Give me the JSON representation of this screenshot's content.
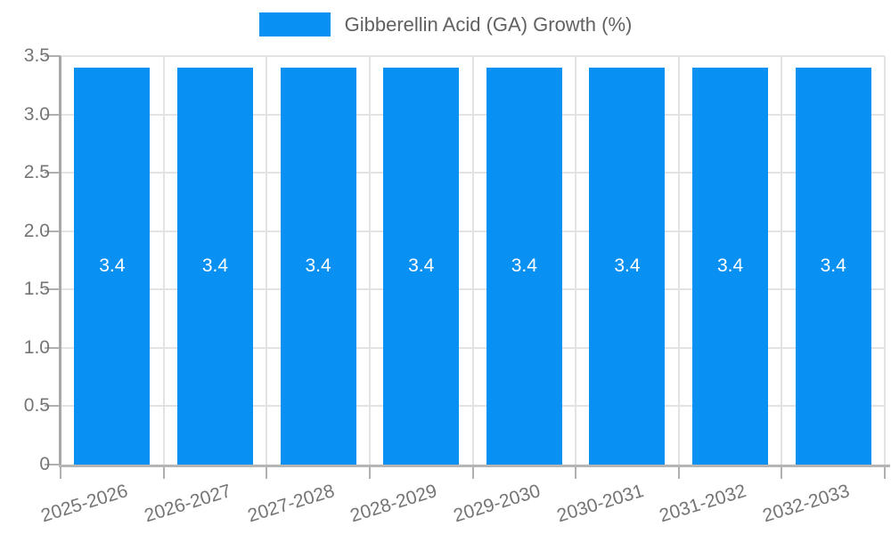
{
  "legend": {
    "label": "Gibberellin Acid (GA) Growth (%)"
  },
  "chart_data": {
    "type": "bar",
    "title": "Gibberellin Acid (GA) Growth (%)",
    "series_name": "Gibberellin Acid (GA) Growth (%)",
    "categories": [
      "2025-2026",
      "2026-2027",
      "2027-2028",
      "2028-2029",
      "2029-2030",
      "2030-2031",
      "2031-2032",
      "2032-2033"
    ],
    "values": [
      3.4,
      3.4,
      3.4,
      3.4,
      3.4,
      3.4,
      3.4,
      3.4
    ],
    "data_labels": [
      "3.4",
      "3.4",
      "3.4",
      "3.4",
      "3.4",
      "3.4",
      "3.4",
      "3.4"
    ],
    "xlabel": "",
    "ylabel": "",
    "ylim": [
      0,
      3.5
    ],
    "ytick_labels": [
      "0",
      "0.5",
      "1.0",
      "1.5",
      "2.0",
      "2.5",
      "3.0",
      "3.5"
    ],
    "grid": true,
    "legend_position": "top-center",
    "colors": {
      "bar": "#0890f2",
      "bar_value_text": "#ffffff",
      "grid": "#e3e3e3",
      "y_axis_line": "#a8a8a8",
      "x_axis_line": "#b5b5b5",
      "tick_mark": "#b0b0b0",
      "tick_text": "#757575",
      "legend_text": "#616161"
    }
  }
}
